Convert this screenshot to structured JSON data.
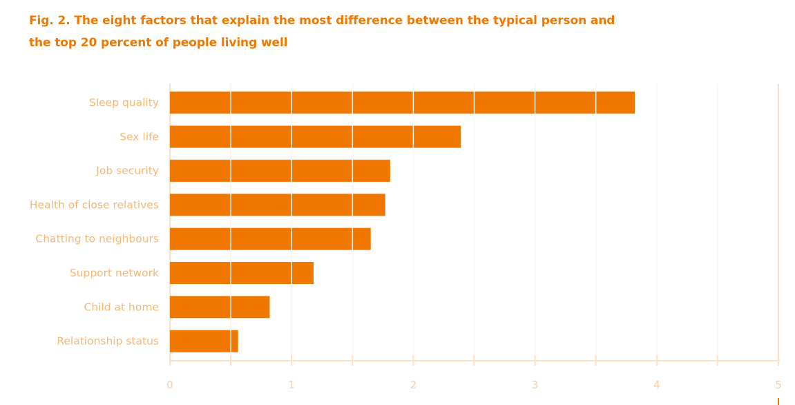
{
  "title": {
    "line1": "Fig. 2. The eight factors that explain the most difference between the typical person and",
    "line2": "the top 20 percent of people living well"
  },
  "colors": {
    "bar": "#f07800",
    "grid": "#fbe0c3",
    "title": "#f07800",
    "label": "#f6b778",
    "tick": "#f8cfa3"
  },
  "chart_data": {
    "type": "bar",
    "orientation": "horizontal",
    "title": "Fig. 2. The eight factors that explain the most difference between the typical person and the top 20 percent of people living well",
    "categories": [
      "Sleep quality",
      "Sex life",
      "Job security",
      "Health of close relatives",
      "Chatting to neighbours",
      "Support network",
      "Child at home",
      "Relationship status"
    ],
    "values": [
      3.82,
      2.39,
      1.81,
      1.77,
      1.65,
      1.18,
      0.82,
      0.56
    ],
    "xlim": [
      0,
      5
    ],
    "x_ticks": [
      "0",
      "1",
      "2",
      "3",
      "4",
      "5"
    ],
    "grid": true,
    "xlabel": "",
    "ylabel": ""
  }
}
